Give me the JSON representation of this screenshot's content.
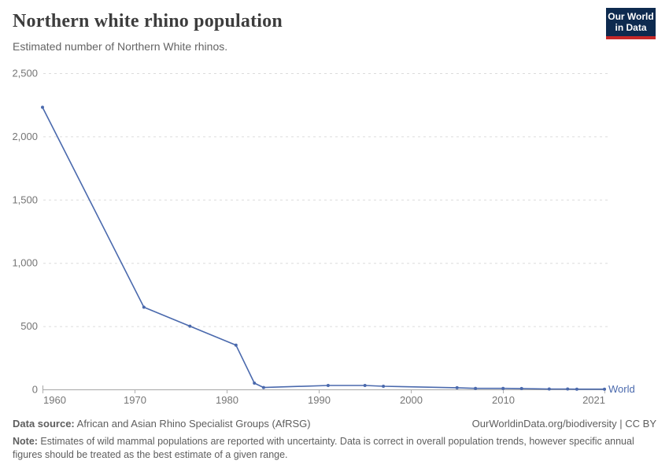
{
  "header": {
    "title": "Northern white rhino population",
    "subtitle": "Estimated number of Northern White rhinos.",
    "logo": {
      "line1": "Our World",
      "line2": "in Data",
      "bg_color": "#0d2a4f",
      "accent_color": "#c62828"
    }
  },
  "chart_data": {
    "type": "line",
    "title": "Northern white rhino population",
    "subtitle": "Estimated number of Northern White rhinos.",
    "series": [
      {
        "name": "World",
        "points": [
          {
            "year": 1960,
            "value": 2230
          },
          {
            "year": 1971,
            "value": 650
          },
          {
            "year": 1976,
            "value": 500
          },
          {
            "year": 1981,
            "value": 350
          },
          {
            "year": 1983,
            "value": 50
          },
          {
            "year": 1984,
            "value": 15
          },
          {
            "year": 1991,
            "value": 31
          },
          {
            "year": 1995,
            "value": 31
          },
          {
            "year": 1997,
            "value": 25
          },
          {
            "year": 2005,
            "value": 13
          },
          {
            "year": 2007,
            "value": 8
          },
          {
            "year": 2010,
            "value": 8
          },
          {
            "year": 2012,
            "value": 7
          },
          {
            "year": 2015,
            "value": 3
          },
          {
            "year": 2017,
            "value": 3
          },
          {
            "year": 2018,
            "value": 2
          },
          {
            "year": 2021,
            "value": 2
          }
        ]
      }
    ],
    "x_ticks": [
      1960,
      1970,
      1980,
      1990,
      2000,
      2010,
      2021
    ],
    "y_ticks": [
      0,
      500,
      1000,
      1500,
      2000,
      2500
    ],
    "y_tick_labels": [
      "0",
      "500",
      "1,000",
      "1,500",
      "2,000",
      "2,500"
    ],
    "xlim": [
      1960,
      2021
    ],
    "ylim": [
      0,
      2500
    ],
    "grid": "horizontal-dashed",
    "legend_position": "end-of-line",
    "entity_label": "World",
    "line_color": "#4a69ad"
  },
  "footer": {
    "source_label": "Data source:",
    "source_value": " African and Asian Rhino Specialist Groups (AfRSG)",
    "credit": "OurWorldinData.org/biodiversity | CC BY",
    "note_label": "Note:",
    "note_text": " Estimates of wild mammal populations are reported with uncertainty. Data is correct in overall population trends, however specific annual figures should be treated as the best estimate of a given range."
  }
}
